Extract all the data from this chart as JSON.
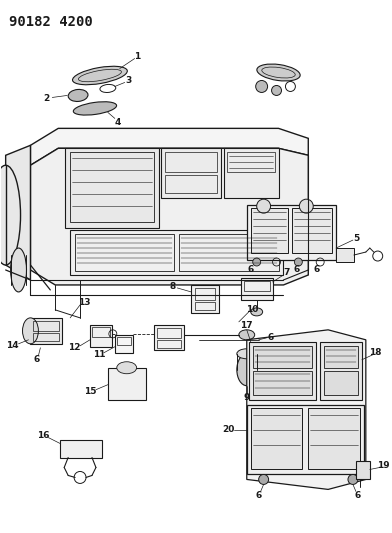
{
  "title": "90182 4200",
  "bg_color": "#ffffff",
  "line_color": "#1a1a1a",
  "label_fontsize": 6.5,
  "title_fontsize": 10
}
